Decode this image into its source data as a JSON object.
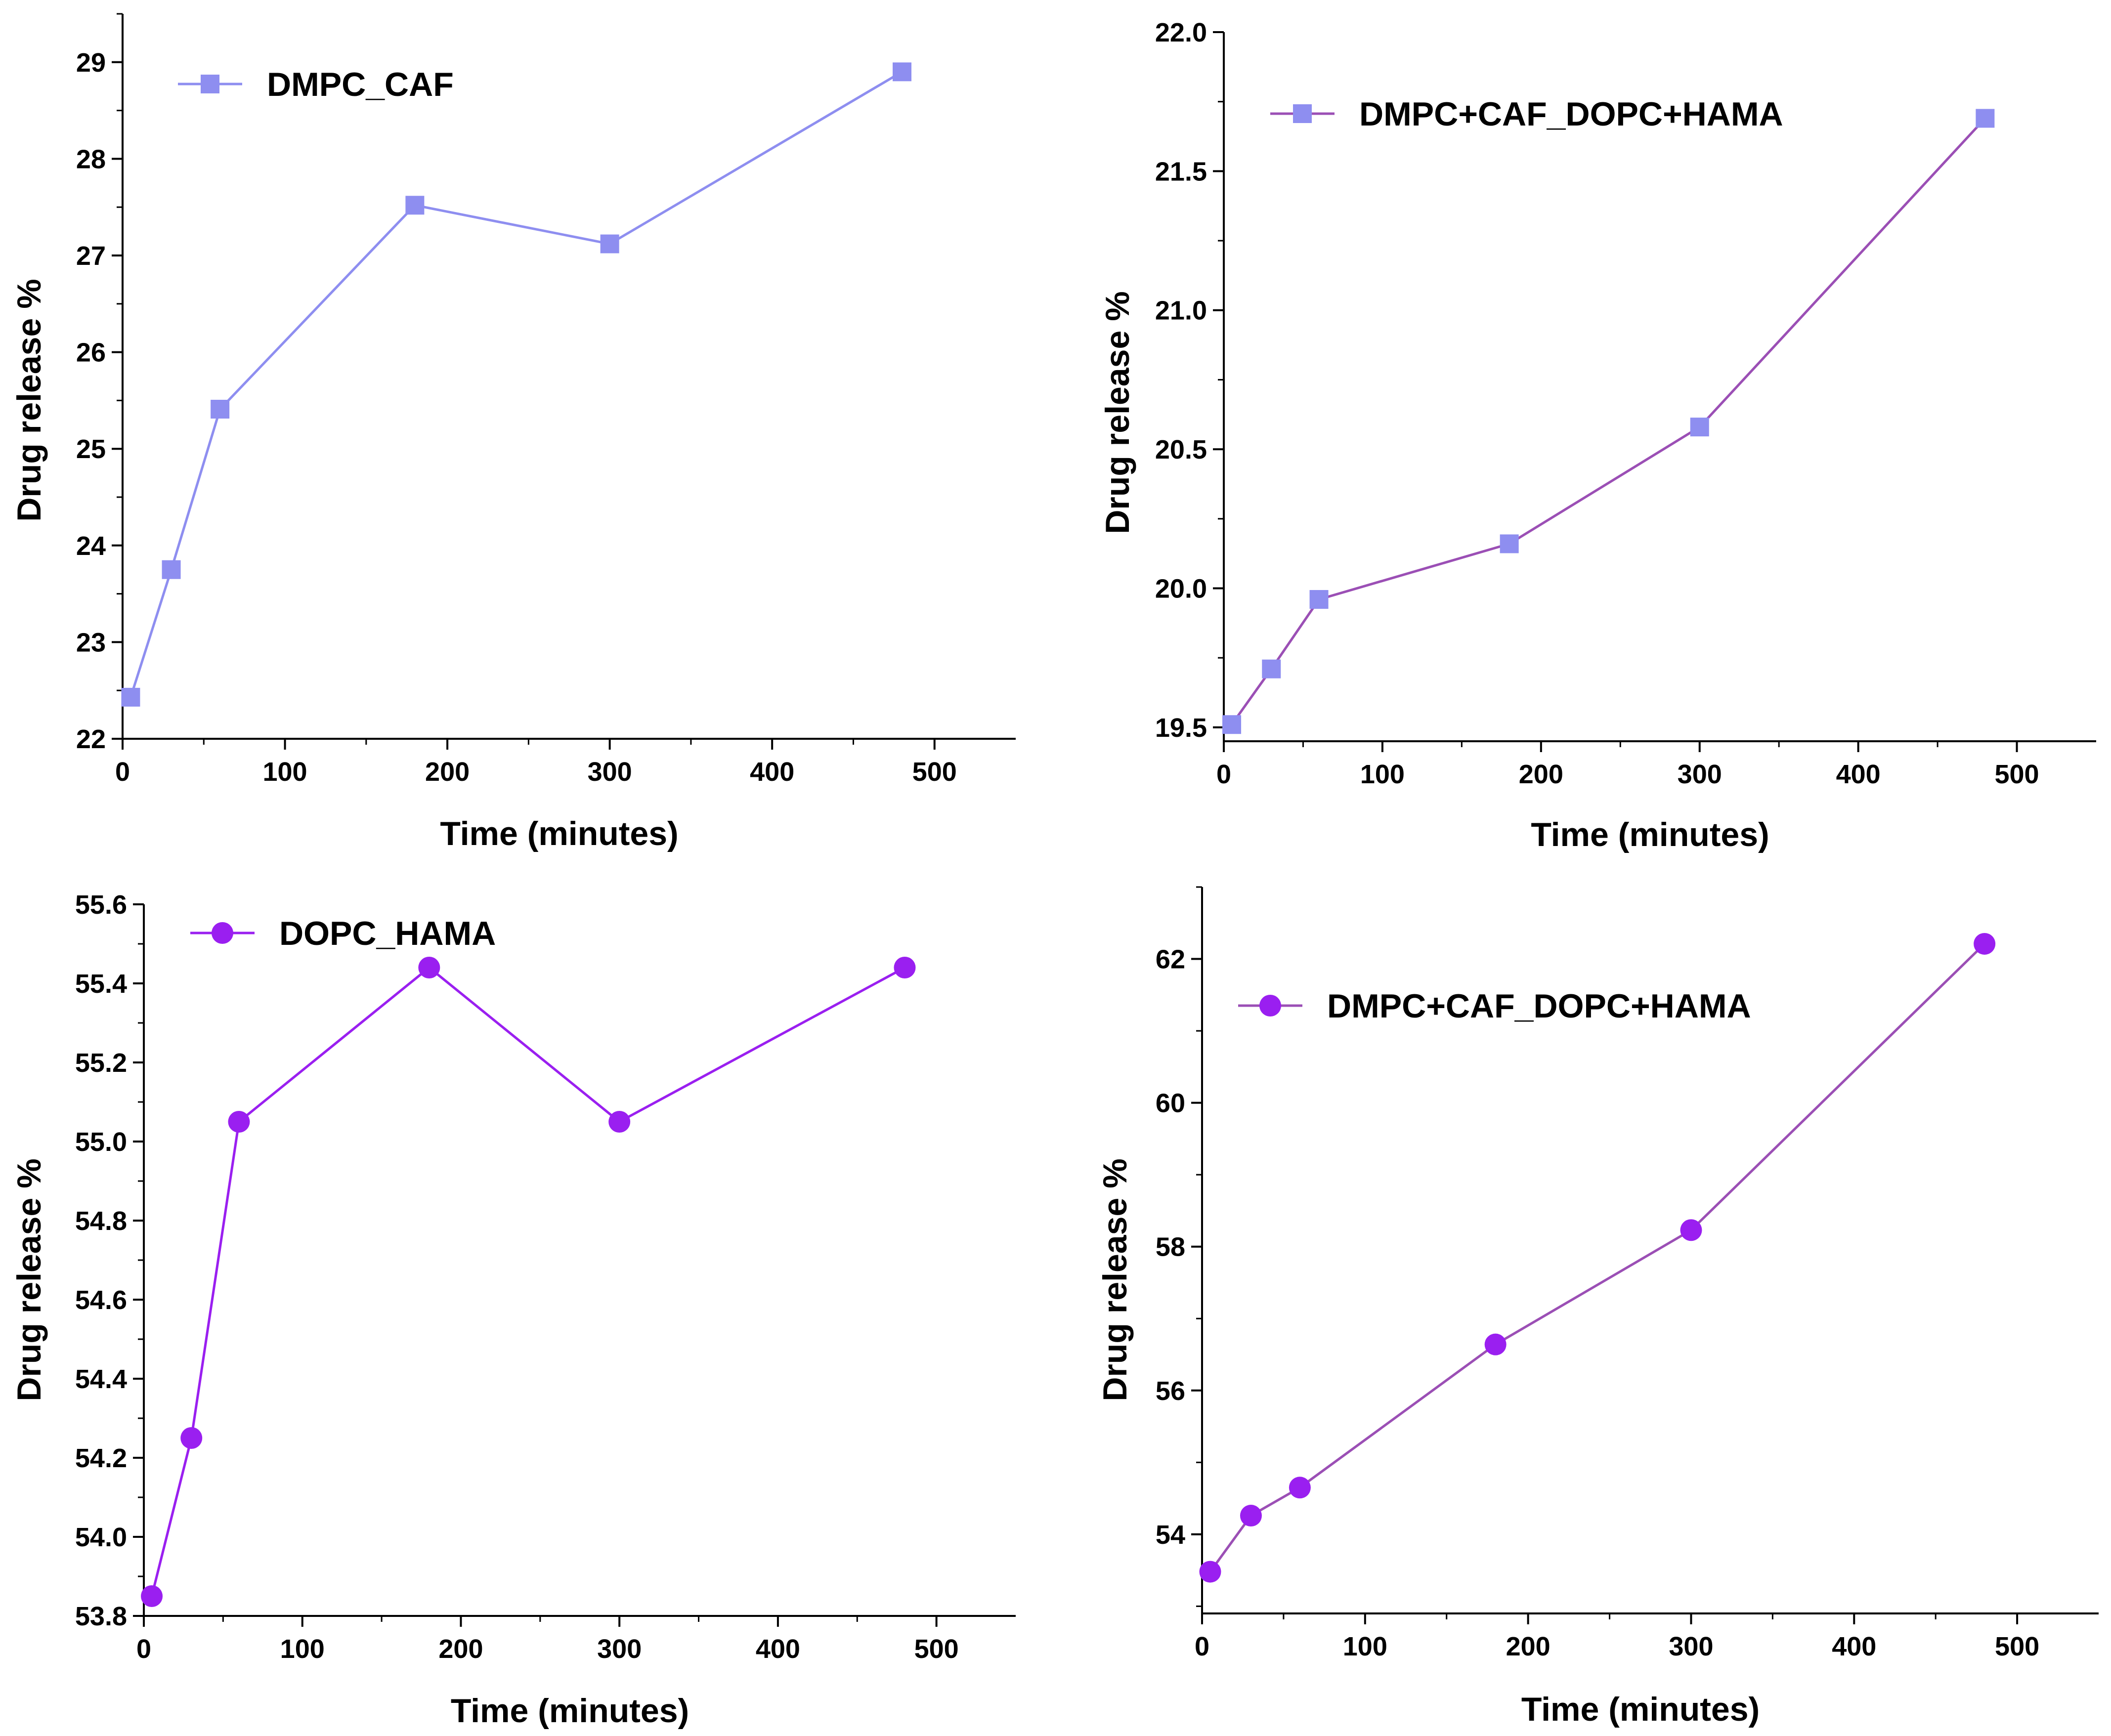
{
  "chart_data": [
    {
      "type": "line",
      "xlabel": "Time (minutes)",
      "ylabel": "Drug release %",
      "xlim": [
        0,
        550
      ],
      "ylim": [
        22,
        29.5
      ],
      "xticks": [
        0,
        100,
        200,
        300,
        400,
        500
      ],
      "yticks": [
        22,
        23,
        24,
        25,
        26,
        27,
        28,
        29
      ],
      "ytick_labels": [
        "22",
        "23",
        "24",
        "25",
        "26",
        "27",
        "28",
        "29"
      ],
      "legend_position": "top-left",
      "series": [
        {
          "name": "DMPC_CAF",
          "marker": "square",
          "line_color": "#8e8ef0",
          "marker_color": "#8e8ef0",
          "x": [
            5,
            30,
            60,
            180,
            300,
            480
          ],
          "y": [
            22.43,
            23.75,
            25.41,
            27.52,
            27.12,
            28.9
          ]
        }
      ]
    },
    {
      "type": "line",
      "xlabel": "Time (minutes)",
      "ylabel": "Drug release %",
      "xlim": [
        0,
        550
      ],
      "ylim": [
        19.45,
        22.0
      ],
      "xticks": [
        0,
        100,
        200,
        300,
        400,
        500
      ],
      "yticks": [
        19.5,
        20.0,
        20.5,
        21.0,
        21.5,
        22.0
      ],
      "ytick_labels": [
        "19.5",
        "20.0",
        "20.5",
        "21.0",
        "21.5",
        "22.0"
      ],
      "legend_position": "top-left",
      "series": [
        {
          "name": "DMPC+CAF_DOPC+HAMA",
          "marker": "square",
          "line_color": "#9b4fb5",
          "marker_color": "#8e8ef0",
          "x": [
            5,
            30,
            60,
            180,
            300,
            480
          ],
          "y": [
            19.51,
            19.71,
            19.96,
            20.16,
            20.58,
            21.69
          ]
        }
      ]
    },
    {
      "type": "line",
      "xlabel": "Time (minutes)",
      "ylabel": "Drug release %",
      "xlim": [
        0,
        550
      ],
      "ylim": [
        53.8,
        55.6
      ],
      "xticks": [
        0,
        100,
        200,
        300,
        400,
        500
      ],
      "yticks": [
        53.8,
        54.0,
        54.2,
        54.4,
        54.6,
        54.8,
        55.0,
        55.2,
        55.4,
        55.6
      ],
      "ytick_labels": [
        "53.8",
        "54.0",
        "54.2",
        "54.4",
        "54.6",
        "54.8",
        "55.0",
        "55.2",
        "55.4",
        "55.6"
      ],
      "legend_position": "top-left",
      "series": [
        {
          "name": "DOPC_HAMA",
          "marker": "circle",
          "line_color": "#9a1ff0",
          "marker_color": "#9a1ff0",
          "x": [
            5,
            30,
            60,
            180,
            300,
            480
          ],
          "y": [
            53.85,
            54.25,
            55.05,
            55.44,
            55.05,
            55.44
          ]
        }
      ]
    },
    {
      "type": "line",
      "xlabel": "Time (minutes)",
      "ylabel": "Drug release %",
      "xlim": [
        0,
        550
      ],
      "ylim": [
        52.9,
        63.0
      ],
      "xticks": [
        0,
        100,
        200,
        300,
        400,
        500
      ],
      "yticks": [
        54,
        56,
        58,
        60,
        62
      ],
      "ytick_labels": [
        "54",
        "56",
        "58",
        "60",
        "62"
      ],
      "legend_position": "top-left",
      "series": [
        {
          "name": "DMPC+CAF_DOPC+HAMA",
          "marker": "circle",
          "line_color": "#9b4fb5",
          "marker_color": "#9a1ff0",
          "x": [
            5,
            30,
            60,
            180,
            300,
            480
          ],
          "y": [
            53.48,
            54.26,
            54.65,
            56.64,
            58.23,
            62.21
          ]
        }
      ]
    }
  ]
}
